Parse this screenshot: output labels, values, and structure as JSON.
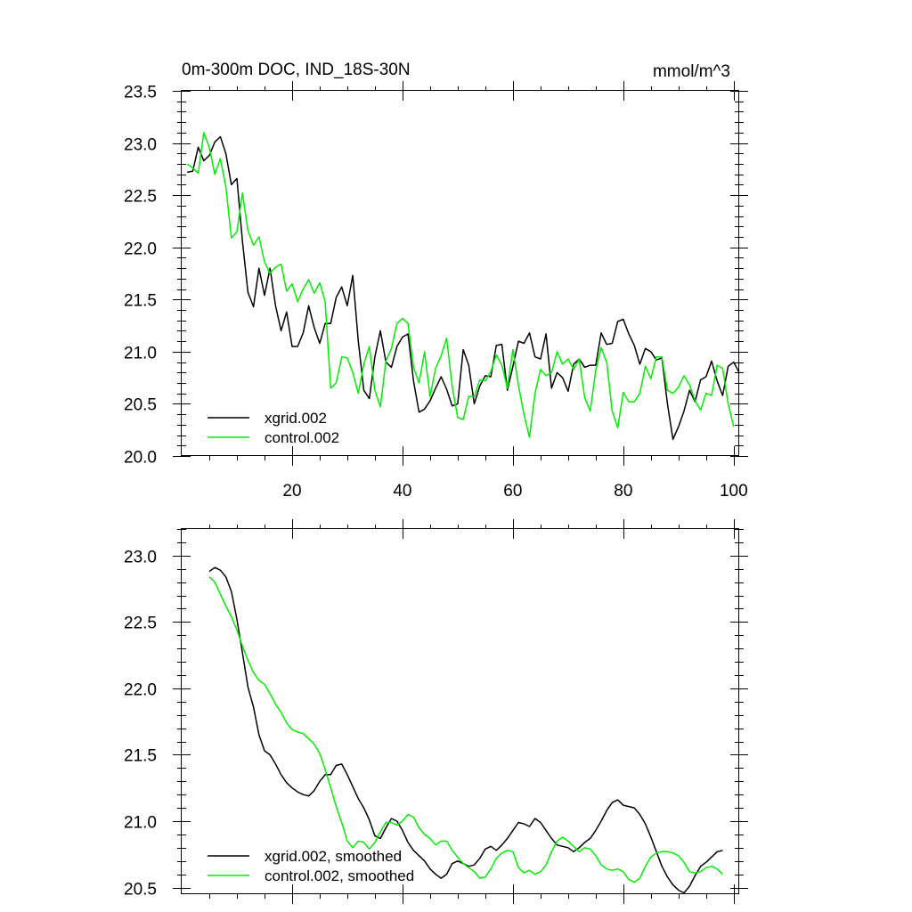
{
  "colors": {
    "xgrid": "#000000",
    "control": "#00ee00"
  },
  "chart_data": [
    {
      "type": "line",
      "title": "0m-300m DOC, IND_18S-30N",
      "units": "mmol/m^3",
      "xlim": [
        0,
        101
      ],
      "ylim": [
        20.0,
        23.5
      ],
      "xticks": [
        20,
        40,
        60,
        80,
        100
      ],
      "yticks": [
        20.0,
        20.5,
        21.0,
        21.5,
        22.0,
        22.5,
        23.0,
        23.5
      ],
      "ytick_labels": [
        "20.0",
        "20.5",
        "21.0",
        "21.5",
        "22.0",
        "22.5",
        "23.0",
        "23.5"
      ],
      "xtick_labels": [
        "20",
        "40",
        "60",
        "80",
        "100"
      ],
      "legend_position": "bottom-left",
      "series": [
        {
          "name": "xgrid.002",
          "color_key": "xgrid",
          "x_start": 1,
          "values": [
            22.72,
            22.73,
            22.96,
            22.83,
            22.88,
            23.01,
            23.06,
            22.9,
            22.6,
            22.66,
            22.06,
            21.57,
            21.43,
            21.8,
            21.54,
            21.8,
            21.44,
            21.2,
            21.38,
            21.05,
            21.05,
            21.18,
            21.44,
            21.23,
            21.08,
            21.27,
            21.27,
            21.52,
            21.62,
            21.44,
            21.73,
            21.1,
            20.63,
            20.55,
            20.95,
            21.2,
            20.9,
            20.85,
            21.05,
            21.14,
            21.17,
            20.72,
            20.42,
            20.45,
            20.53,
            20.65,
            20.76,
            20.64,
            20.48,
            20.5,
            21.02,
            20.87,
            20.5,
            20.67,
            20.77,
            20.76,
            21.06,
            21.07,
            20.63,
            20.86,
            21.1,
            21.08,
            21.18,
            20.95,
            20.93,
            21.17,
            20.65,
            20.8,
            20.75,
            20.62,
            20.88,
            20.93,
            20.85,
            20.87,
            20.87,
            21.18,
            21.07,
            21.08,
            21.29,
            21.31,
            21.17,
            21.06,
            20.88,
            21.03,
            21.0,
            20.92,
            20.94,
            20.5,
            20.16,
            20.28,
            20.43,
            20.63,
            20.52,
            20.73,
            20.76,
            20.91,
            20.72,
            20.58,
            20.86,
            20.9,
            20.8
          ]
        },
        {
          "name": "control.002",
          "color_key": "control",
          "x_start": 1,
          "values": [
            22.8,
            22.76,
            22.71,
            23.1,
            22.96,
            22.7,
            22.85,
            22.58,
            22.09,
            22.15,
            22.52,
            22.16,
            22.02,
            22.1,
            21.86,
            21.75,
            21.81,
            21.84,
            21.58,
            21.65,
            21.48,
            21.6,
            21.69,
            21.56,
            21.66,
            21.48,
            20.65,
            20.7,
            20.95,
            20.94,
            20.8,
            20.6,
            20.88,
            21.05,
            20.63,
            20.47,
            20.91,
            21.03,
            21.27,
            21.32,
            21.27,
            20.85,
            20.7,
            21.0,
            20.57,
            20.84,
            20.96,
            21.13,
            20.67,
            20.37,
            20.35,
            20.57,
            20.57,
            20.73,
            20.72,
            20.81,
            20.97,
            20.87,
            20.65,
            21.02,
            20.68,
            20.4,
            20.18,
            20.6,
            20.83,
            20.77,
            20.8,
            21.0,
            20.88,
            20.93,
            20.83,
            20.93,
            20.56,
            20.43,
            20.82,
            21.04,
            20.9,
            20.43,
            20.27,
            20.61,
            20.52,
            20.52,
            20.6,
            20.86,
            20.74,
            20.95,
            20.95,
            20.63,
            20.6,
            20.66,
            20.77,
            20.68,
            20.53,
            20.44,
            20.6,
            20.58,
            20.87,
            20.84,
            20.5,
            20.28
          ]
        }
      ]
    },
    {
      "type": "line",
      "title": "",
      "xlim": [
        0,
        101
      ],
      "ylim": [
        20.45,
        23.2
      ],
      "xticks": [
        20,
        40,
        60,
        80,
        100
      ],
      "yticks": [
        20.5,
        21.0,
        21.5,
        22.0,
        22.5,
        23.0
      ],
      "ytick_labels": [
        "20.5",
        "21.0",
        "21.5",
        "22.0",
        "22.5",
        "23.0"
      ],
      "xtick_labels": [],
      "legend_position": "bottom-left",
      "series": [
        {
          "name": "xgrid.002, smoothed",
          "color_key": "xgrid",
          "x_start": 5,
          "values": [
            22.88,
            22.91,
            22.89,
            22.84,
            22.73,
            22.52,
            22.27,
            22.01,
            21.86,
            21.65,
            21.53,
            21.5,
            21.43,
            21.35,
            21.29,
            21.25,
            21.22,
            21.2,
            21.19,
            21.23,
            21.3,
            21.35,
            21.35,
            21.42,
            21.43,
            21.35,
            21.26,
            21.17,
            21.1,
            21.01,
            20.89,
            20.87,
            20.95,
            21.02,
            21.0,
            20.93,
            20.84,
            20.78,
            20.74,
            20.7,
            20.64,
            20.6,
            20.57,
            20.6,
            20.68,
            20.7,
            20.68,
            20.66,
            20.67,
            20.72,
            20.79,
            20.81,
            20.78,
            20.82,
            20.87,
            20.93,
            20.99,
            20.98,
            20.96,
            21.02,
            20.99,
            20.93,
            20.87,
            20.82,
            20.81,
            20.8,
            20.77,
            20.8,
            20.84,
            20.87,
            20.93,
            21.0,
            21.08,
            21.14,
            21.16,
            21.12,
            21.11,
            21.1,
            21.05,
            20.98,
            20.88,
            20.77,
            20.66,
            20.58,
            20.52,
            20.48,
            20.46,
            20.51,
            20.59,
            20.66,
            20.69,
            20.73,
            20.77,
            20.78
          ]
        },
        {
          "name": "control.002, smoothed",
          "color_key": "control",
          "x_start": 5,
          "values": [
            22.84,
            22.8,
            22.71,
            22.62,
            22.54,
            22.44,
            22.32,
            22.21,
            22.12,
            22.06,
            22.03,
            21.96,
            21.88,
            21.82,
            21.74,
            21.69,
            21.67,
            21.66,
            21.62,
            21.58,
            21.51,
            21.39,
            21.25,
            21.11,
            20.99,
            20.85,
            20.8,
            20.85,
            20.84,
            20.79,
            20.84,
            20.92,
            20.99,
            20.99,
            20.97,
            21.0,
            21.05,
            21.03,
            20.95,
            20.9,
            20.87,
            20.82,
            20.85,
            20.85,
            20.78,
            20.73,
            20.68,
            20.65,
            20.62,
            20.57,
            20.58,
            20.64,
            20.72,
            20.76,
            20.78,
            20.77,
            20.65,
            20.61,
            20.63,
            20.6,
            20.62,
            20.67,
            20.77,
            20.85,
            20.88,
            20.85,
            20.81,
            20.77,
            20.8,
            20.79,
            20.74,
            20.67,
            20.64,
            20.63,
            20.64,
            20.62,
            20.56,
            20.54,
            20.57,
            20.66,
            20.73,
            20.76,
            20.77,
            20.77,
            20.76,
            20.74,
            20.69,
            20.62,
            20.61,
            20.62,
            20.65,
            20.66,
            20.64,
            20.6
          ]
        }
      ]
    }
  ]
}
